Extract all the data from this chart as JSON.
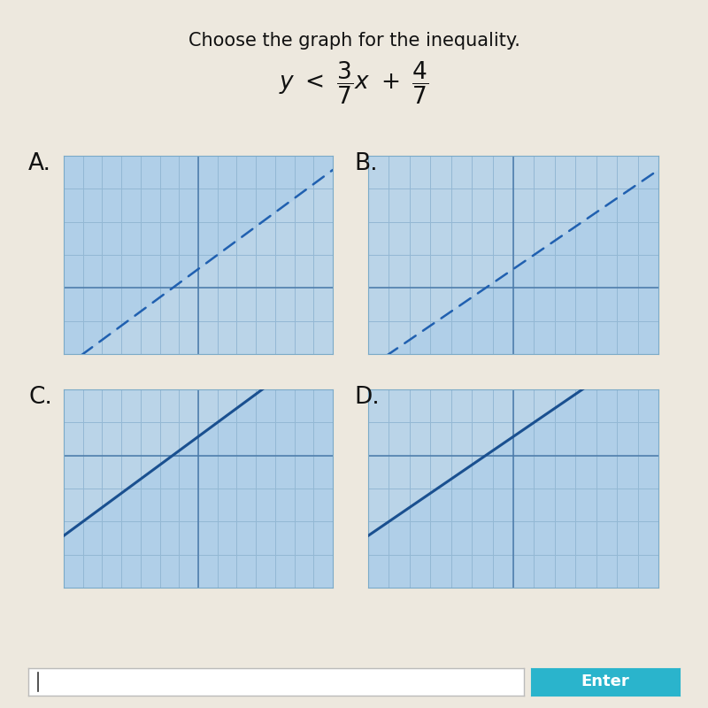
{
  "title": "Choose the graph for the inequality.",
  "slope": 0.42857142857,
  "intercept": 0.57142857143,
  "bg_color": "#bad4e8",
  "grid_color": "#93b8d4",
  "line_color_dashed": "#2060b0",
  "line_color_solid": "#1a5090",
  "shade_color": "#b0cfe8",
  "axis_color": "#4a7aaa",
  "outer_bg": "#ede8de",
  "graphs": [
    {
      "label": "A",
      "dashed": true,
      "shade_above": true,
      "xlim": [
        -7,
        7
      ],
      "ylim": [
        -2,
        4
      ],
      "slope": 0.42857,
      "intercept": 0.5714
    },
    {
      "label": "B",
      "dashed": true,
      "shade_above": false,
      "xlim": [
        -7,
        7
      ],
      "ylim": [
        -2,
        4
      ],
      "slope": 0.42857,
      "intercept": 0.5714
    },
    {
      "label": "C",
      "dashed": false,
      "shade_above": false,
      "xlim": [
        -7,
        7
      ],
      "ylim": [
        -4,
        2
      ],
      "slope": 0.42857,
      "intercept": 0.5714
    },
    {
      "label": "D",
      "dashed": false,
      "shade_above": false,
      "xlim": [
        -7,
        7
      ],
      "ylim": [
        -4,
        2
      ],
      "slope": 0.42857,
      "intercept": 0.5714
    }
  ],
  "enter_btn_color": "#2ab4cc",
  "enter_btn_text": "Enter"
}
